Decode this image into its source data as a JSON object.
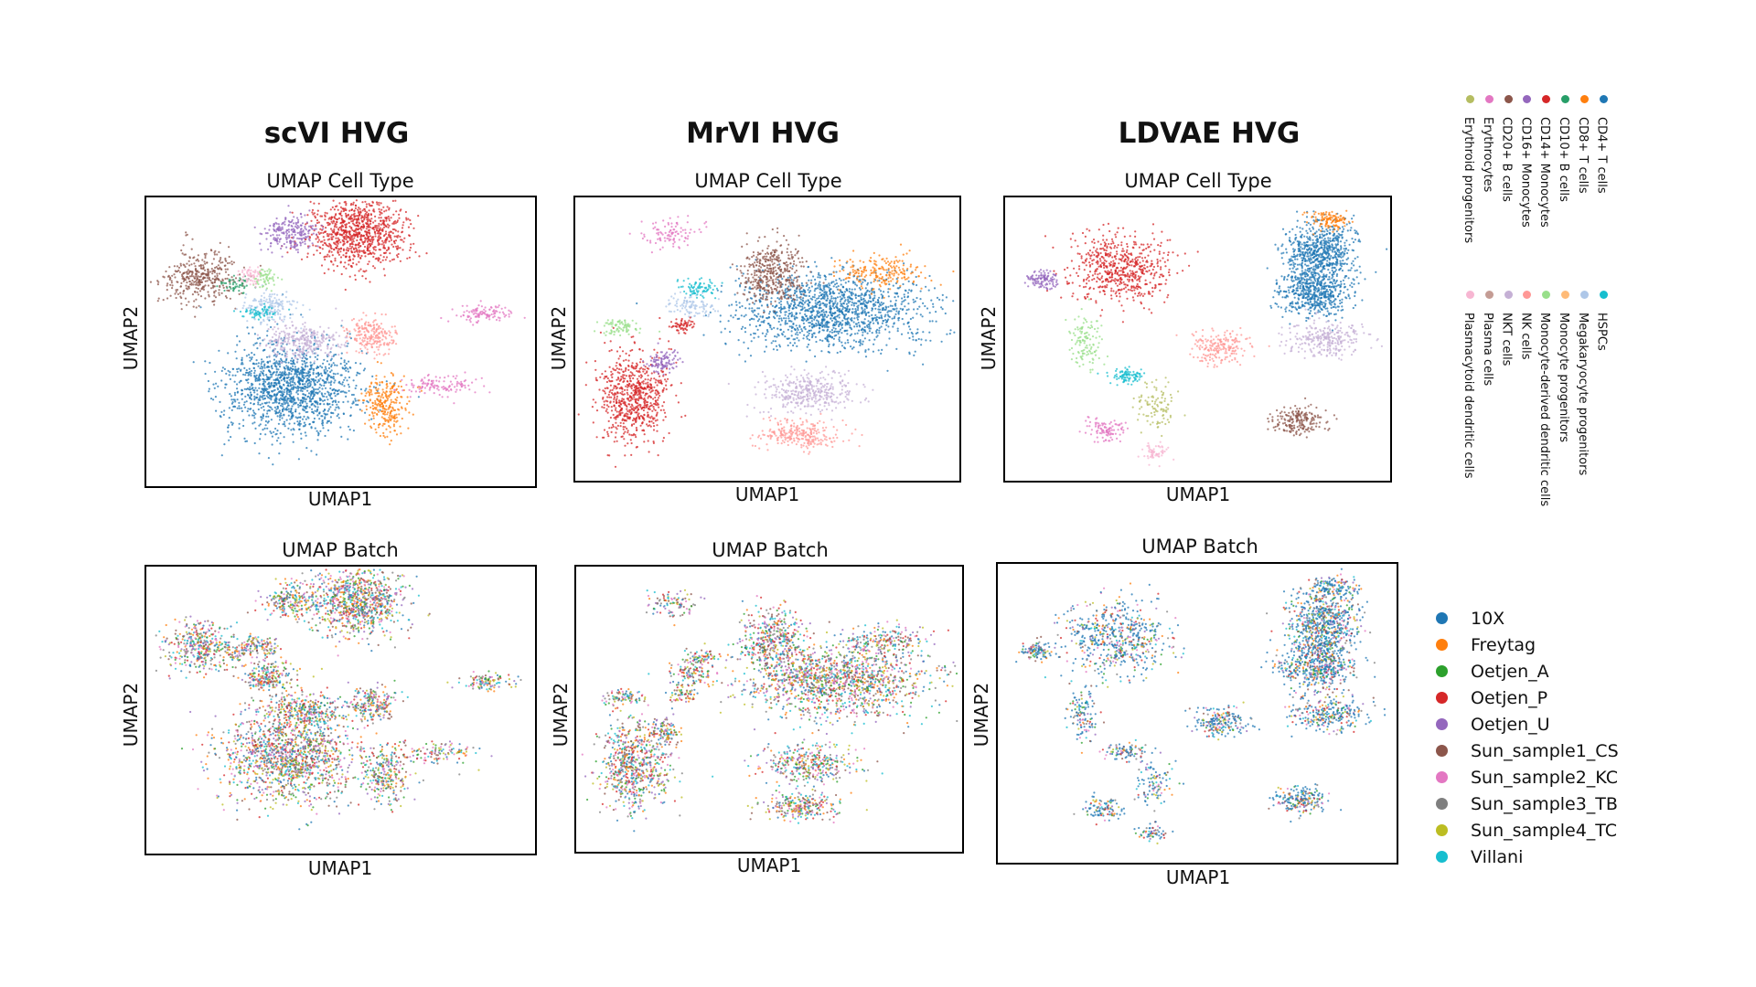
{
  "methods": [
    "scVI HVG",
    "MrVI HVG",
    "LDVAE HVG"
  ],
  "panel_titles": {
    "cell_type": "UMAP Cell Type",
    "batch": "UMAP Batch"
  },
  "axis": {
    "x": "UMAP1",
    "y": "UMAP2"
  },
  "cell_type_legend": [
    {
      "label": "Erythroid progenitors",
      "color": "#b5bd61"
    },
    {
      "label": "Erythrocytes",
      "color": "#e377c2"
    },
    {
      "label": "CD20+ B cells",
      "color": "#8c564b"
    },
    {
      "label": "CD16+ Monocytes",
      "color": "#9467bd"
    },
    {
      "label": "CD14+ Monocytes",
      "color": "#d62728"
    },
    {
      "label": "CD10+ B cells",
      "color": "#279e68"
    },
    {
      "label": "CD8+ T cells",
      "color": "#ff7f0e"
    },
    {
      "label": "CD4+ T cells",
      "color": "#1f77b4"
    },
    {
      "label": "Plasmacytoid dendritic cells",
      "color": "#f7b6d2"
    },
    {
      "label": "Plasma cells",
      "color": "#c49c94"
    },
    {
      "label": "NKT cells",
      "color": "#c5b0d5"
    },
    {
      "label": "NK cells",
      "color": "#ff9896"
    },
    {
      "label": "Monocyte-derived dendritic cells",
      "color": "#98df8a"
    },
    {
      "label": "Monocyte progenitors",
      "color": "#ffbb78"
    },
    {
      "label": "Megakaryocyte progenitors",
      "color": "#aec7e8"
    },
    {
      "label": "HSPCs",
      "color": "#17becf"
    }
  ],
  "batch_legend": [
    {
      "label": "10X",
      "color": "#1f77b4"
    },
    {
      "label": "Freytag",
      "color": "#ff7f0e"
    },
    {
      "label": "Oetjen_A",
      "color": "#2ca02c"
    },
    {
      "label": "Oetjen_P",
      "color": "#d62728"
    },
    {
      "label": "Oetjen_U",
      "color": "#9467bd"
    },
    {
      "label": "Sun_sample1_CS",
      "color": "#8c564b"
    },
    {
      "label": "Sun_sample2_KC",
      "color": "#e377c2"
    },
    {
      "label": "Sun_sample3_TB",
      "color": "#7f7f7f"
    },
    {
      "label": "Sun_sample4_TC",
      "color": "#bcbd22"
    },
    {
      "label": "Villani",
      "color": "#17becf"
    }
  ],
  "chart_data": [
    {
      "type": "scatter",
      "title": "UMAP Cell Type",
      "xlabel": "UMAP1",
      "ylabel": "UMAP2",
      "method": "scVI HVG",
      "grid": false
    },
    {
      "type": "scatter",
      "title": "UMAP Cell Type",
      "xlabel": "UMAP1",
      "ylabel": "UMAP2",
      "method": "MrVI HVG",
      "grid": false
    },
    {
      "type": "scatter",
      "title": "UMAP Cell Type",
      "xlabel": "UMAP1",
      "ylabel": "UMAP2",
      "method": "LDVAE HVG",
      "grid": false
    },
    {
      "type": "scatter",
      "title": "UMAP Batch",
      "xlabel": "UMAP1",
      "ylabel": "UMAP2",
      "method": "scVI HVG",
      "grid": false
    },
    {
      "type": "scatter",
      "title": "UMAP Batch",
      "xlabel": "UMAP1",
      "ylabel": "UMAP2",
      "method": "MrVI HVG",
      "grid": false
    },
    {
      "type": "scatter",
      "title": "UMAP Batch",
      "xlabel": "UMAP1",
      "ylabel": "UMAP2",
      "method": "LDVAE HVG",
      "grid": false
    }
  ]
}
